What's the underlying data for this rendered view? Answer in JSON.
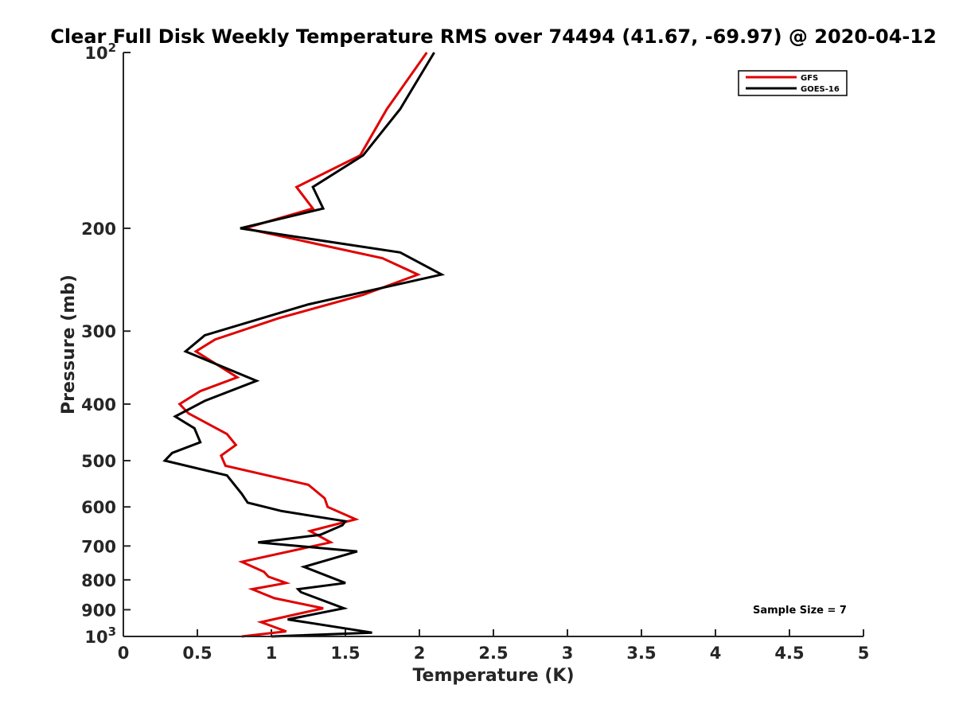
{
  "chart_data": {
    "type": "line",
    "title": "Clear Full Disk Weekly Temperature RMS over 74494 (41.67, -69.97) @ 2020-04-12",
    "xlabel": "Temperature (K)",
    "ylabel": "Pressure (mb)",
    "xlim": [
      0,
      5
    ],
    "ylim": [
      1000,
      100
    ],
    "yscale": "log",
    "y_reversed": true,
    "x_ticks": [
      0,
      0.5,
      1,
      1.5,
      2,
      2.5,
      3,
      3.5,
      4,
      4.5,
      5
    ],
    "x_tick_labels": [
      "0",
      "0.5",
      "1",
      "1.5",
      "2",
      "2.5",
      "3",
      "3.5",
      "4",
      "4.5",
      "5"
    ],
    "y_ticks": [
      100,
      200,
      300,
      400,
      500,
      600,
      700,
      800,
      900,
      1000
    ],
    "y_tick_labels": [
      {
        "base": "10",
        "exp": "2"
      },
      {
        "base": "200"
      },
      {
        "base": "300"
      },
      {
        "base": "400"
      },
      {
        "base": "500"
      },
      {
        "base": "600"
      },
      {
        "base": "700"
      },
      {
        "base": "800"
      },
      {
        "base": "900"
      },
      {
        "base": "10",
        "exp": "3"
      }
    ],
    "grid": false,
    "legend": "top-right",
    "annotation": "Sample Size = 7",
    "series": [
      {
        "name": "GFS",
        "color": "#e00000",
        "points": [
          [
            2.05,
            100
          ],
          [
            1.78,
            125
          ],
          [
            1.6,
            150
          ],
          [
            1.17,
            170
          ],
          [
            1.28,
            185
          ],
          [
            0.82,
            200
          ],
          [
            1.75,
            225
          ],
          [
            1.99,
            240
          ],
          [
            1.62,
            260
          ],
          [
            1.05,
            285
          ],
          [
            0.62,
            310
          ],
          [
            0.49,
            325
          ],
          [
            0.77,
            360
          ],
          [
            0.52,
            380
          ],
          [
            0.38,
            400
          ],
          [
            0.44,
            415
          ],
          [
            0.7,
            450
          ],
          [
            0.76,
            470
          ],
          [
            0.66,
            490
          ],
          [
            0.69,
            510
          ],
          [
            1.25,
            550
          ],
          [
            1.36,
            580
          ],
          [
            1.38,
            600
          ],
          [
            1.57,
            630
          ],
          [
            1.26,
            660
          ],
          [
            1.4,
            690
          ],
          [
            0.8,
            745
          ],
          [
            0.95,
            775
          ],
          [
            0.98,
            790
          ],
          [
            1.1,
            810
          ],
          [
            0.87,
            830
          ],
          [
            1.02,
            860
          ],
          [
            1.35,
            895
          ],
          [
            0.93,
            945
          ],
          [
            1.1,
            980
          ],
          [
            0.8,
            1000
          ]
        ]
      },
      {
        "name": "GOES-16",
        "color": "#000000",
        "points": [
          [
            2.1,
            100
          ],
          [
            1.87,
            125
          ],
          [
            1.62,
            150
          ],
          [
            1.28,
            170
          ],
          [
            1.35,
            185
          ],
          [
            0.79,
            200
          ],
          [
            1.87,
            220
          ],
          [
            2.15,
            240
          ],
          [
            1.25,
            270
          ],
          [
            0.55,
            305
          ],
          [
            0.42,
            325
          ],
          [
            0.9,
            365
          ],
          [
            0.55,
            395
          ],
          [
            0.35,
            420
          ],
          [
            0.48,
            440
          ],
          [
            0.52,
            465
          ],
          [
            0.33,
            485
          ],
          [
            0.28,
            500
          ],
          [
            0.7,
            530
          ],
          [
            0.8,
            570
          ],
          [
            0.84,
            590
          ],
          [
            1.07,
            610
          ],
          [
            1.5,
            635
          ],
          [
            1.48,
            645
          ],
          [
            1.33,
            670
          ],
          [
            0.91,
            690
          ],
          [
            1.58,
            715
          ],
          [
            1.22,
            760
          ],
          [
            1.5,
            810
          ],
          [
            1.18,
            830
          ],
          [
            1.2,
            840
          ],
          [
            1.49,
            895
          ],
          [
            1.11,
            935
          ],
          [
            1.68,
            985
          ],
          [
            1.0,
            1000
          ]
        ]
      }
    ]
  }
}
